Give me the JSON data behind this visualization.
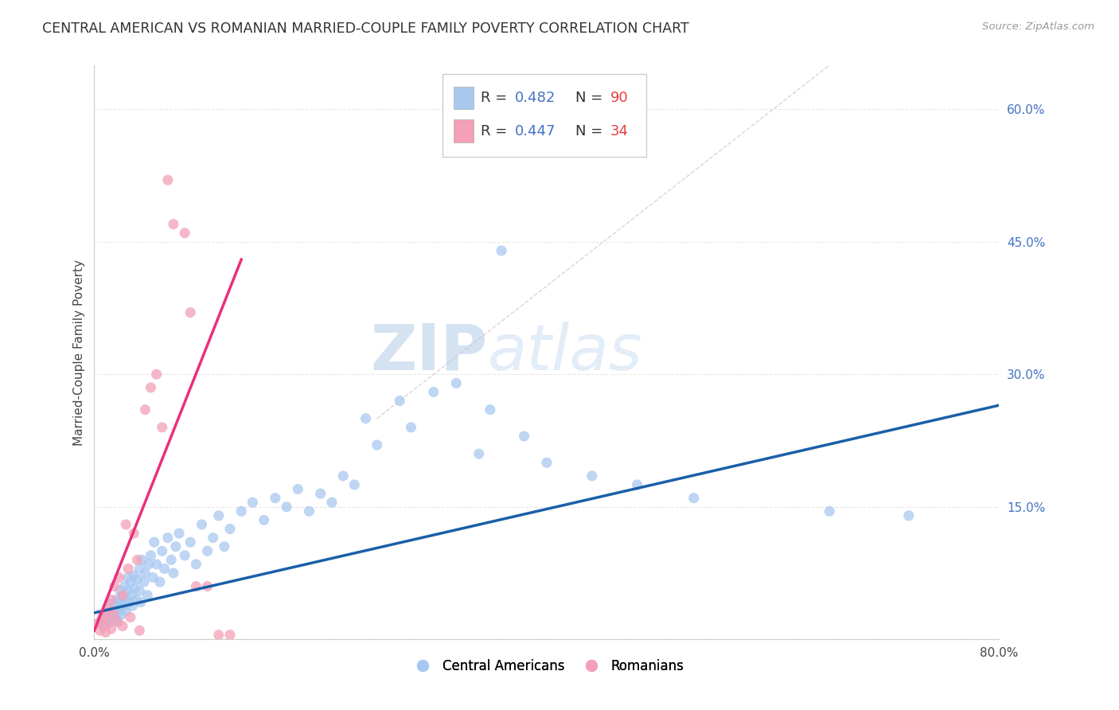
{
  "title": "CENTRAL AMERICAN VS ROMANIAN MARRIED-COUPLE FAMILY POVERTY CORRELATION CHART",
  "source": "Source: ZipAtlas.com",
  "ylabel": "Married-Couple Family Poverty",
  "xlim": [
    0,
    0.8
  ],
  "ylim": [
    0,
    0.65
  ],
  "blue_color": "#A8C8F0",
  "pink_color": "#F4A0B8",
  "blue_line_color": "#1A5FA8",
  "pink_line_color": "#E8307A",
  "legend_r_blue": "0.482",
  "legend_n_blue": "90",
  "legend_r_pink": "0.447",
  "legend_n_pink": "34",
  "legend_label_blue": "Central Americans",
  "legend_label_pink": "Romanians",
  "watermark_zip": "ZIP",
  "watermark_atlas": "atlas",
  "blue_scatter_x": [
    0.005,
    0.008,
    0.01,
    0.01,
    0.012,
    0.013,
    0.015,
    0.015,
    0.015,
    0.017,
    0.018,
    0.019,
    0.02,
    0.02,
    0.021,
    0.022,
    0.023,
    0.023,
    0.024,
    0.025,
    0.026,
    0.027,
    0.028,
    0.028,
    0.03,
    0.03,
    0.031,
    0.032,
    0.033,
    0.034,
    0.035,
    0.036,
    0.037,
    0.038,
    0.04,
    0.04,
    0.041,
    0.042,
    0.044,
    0.045,
    0.047,
    0.048,
    0.05,
    0.052,
    0.053,
    0.055,
    0.058,
    0.06,
    0.062,
    0.065,
    0.068,
    0.07,
    0.072,
    0.075,
    0.08,
    0.085,
    0.09,
    0.095,
    0.1,
    0.105,
    0.11,
    0.115,
    0.12,
    0.13,
    0.14,
    0.15,
    0.16,
    0.17,
    0.18,
    0.19,
    0.2,
    0.21,
    0.22,
    0.23,
    0.24,
    0.25,
    0.27,
    0.28,
    0.3,
    0.32,
    0.34,
    0.35,
    0.36,
    0.38,
    0.4,
    0.44,
    0.48,
    0.53,
    0.65,
    0.72
  ],
  "blue_scatter_y": [
    0.02,
    0.015,
    0.03,
    0.025,
    0.018,
    0.022,
    0.035,
    0.028,
    0.04,
    0.032,
    0.025,
    0.038,
    0.03,
    0.045,
    0.02,
    0.042,
    0.035,
    0.055,
    0.028,
    0.048,
    0.038,
    0.06,
    0.045,
    0.032,
    0.055,
    0.07,
    0.042,
    0.065,
    0.05,
    0.038,
    0.072,
    0.058,
    0.045,
    0.068,
    0.055,
    0.08,
    0.042,
    0.09,
    0.065,
    0.075,
    0.05,
    0.085,
    0.095,
    0.07,
    0.11,
    0.085,
    0.065,
    0.1,
    0.08,
    0.115,
    0.09,
    0.075,
    0.105,
    0.12,
    0.095,
    0.11,
    0.085,
    0.13,
    0.1,
    0.115,
    0.14,
    0.105,
    0.125,
    0.145,
    0.155,
    0.135,
    0.16,
    0.15,
    0.17,
    0.145,
    0.165,
    0.155,
    0.185,
    0.175,
    0.25,
    0.22,
    0.27,
    0.24,
    0.28,
    0.29,
    0.21,
    0.26,
    0.44,
    0.23,
    0.2,
    0.185,
    0.175,
    0.16,
    0.145,
    0.14
  ],
  "pink_scatter_x": [
    0.003,
    0.005,
    0.007,
    0.008,
    0.01,
    0.01,
    0.012,
    0.013,
    0.015,
    0.015,
    0.017,
    0.018,
    0.02,
    0.022,
    0.025,
    0.025,
    0.028,
    0.03,
    0.032,
    0.035,
    0.038,
    0.04,
    0.045,
    0.05,
    0.055,
    0.06,
    0.065,
    0.07,
    0.08,
    0.085,
    0.09,
    0.1,
    0.11,
    0.12
  ],
  "pink_scatter_y": [
    0.018,
    0.01,
    0.025,
    0.015,
    0.03,
    0.008,
    0.022,
    0.035,
    0.012,
    0.045,
    0.028,
    0.06,
    0.02,
    0.07,
    0.05,
    0.015,
    0.13,
    0.08,
    0.025,
    0.12,
    0.09,
    0.01,
    0.26,
    0.285,
    0.3,
    0.24,
    0.52,
    0.47,
    0.46,
    0.37,
    0.06,
    0.06,
    0.005,
    0.005
  ],
  "blue_trend_x": [
    0.0,
    0.8
  ],
  "blue_trend_y": [
    0.03,
    0.265
  ],
  "pink_trend_x": [
    0.0,
    0.13
  ],
  "pink_trend_y": [
    0.01,
    0.43
  ],
  "ref_line_x": [
    0.25,
    0.65
  ],
  "ref_line_y": [
    0.25,
    0.65
  ],
  "background_color": "#FFFFFF",
  "grid_color": "#E8E8E8",
  "ytick_positions": [
    0.0,
    0.15,
    0.3,
    0.45,
    0.6
  ],
  "xtick_positions": [
    0.0,
    0.2,
    0.4,
    0.6,
    0.8
  ]
}
